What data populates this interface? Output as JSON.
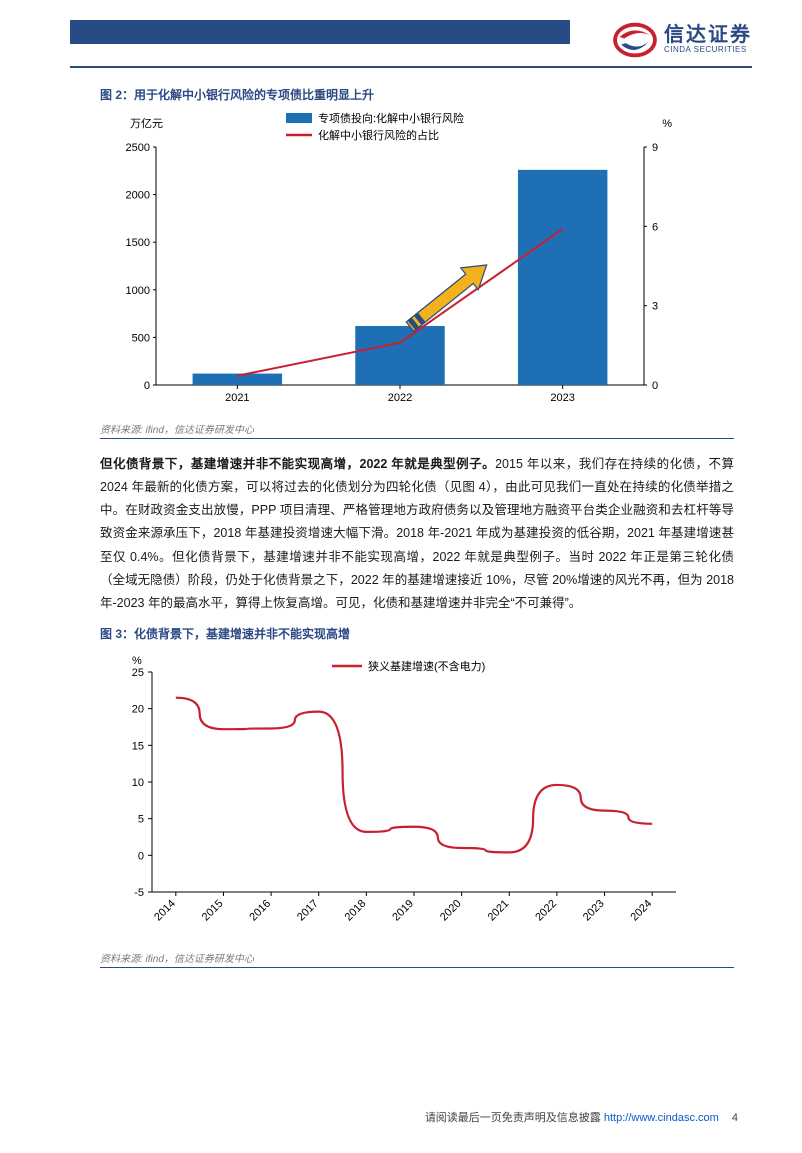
{
  "brand": {
    "name_cn": "信达证券",
    "name_en": "CINDA SECURITIES",
    "bar_color": "#294b83",
    "logo_red": "#c8202f",
    "logo_blue": "#2b4a85"
  },
  "figure2": {
    "title": "图 2：用于化解中小银行风险的专项债比重明显上升",
    "y_left_label": "万亿元",
    "y_right_label": "%",
    "legend_bar": "专项债投向:化解中小银行风险",
    "legend_line": "化解中小银行风险的占比",
    "type": "bar+line",
    "categories": [
      "2021",
      "2022",
      "2023"
    ],
    "bar_values": [
      120,
      620,
      2260
    ],
    "line_values": [
      0.35,
      1.6,
      5.9
    ],
    "bar_color": "#1f6fb5",
    "line_color": "#c8202f",
    "arrow_fill": "#f3b21b",
    "arrow_stroke": "#294b83",
    "y_left": {
      "min": 0,
      "max": 2500,
      "step": 500
    },
    "y_right": {
      "min": 0,
      "max": 9,
      "step": 3
    },
    "bg": "#ffffff",
    "axis_color": "#000000",
    "label_fontsize": 11,
    "source": "资料来源: ifind，信达证券研发中心"
  },
  "paragraph": {
    "lead": "但化债背景下，基建增速并非不能实现高增，2022 年就是典型例子。",
    "rest": "2015 年以来，我们存在持续的化债，不算 2024 年最新的化债方案，可以将过去的化债划分为四轮化债（见图 4），由此可见我们一直处在持续的化债举措之中。在财政资金支出放慢，PPP 项目清理、严格管理地方政府债务以及管理地方融资平台类企业融资和去杠杆等导致资金来源承压下，2018 年基建投资增速大幅下滑。2018 年-2021 年成为基建投资的低谷期，2021 年基建增速甚至仅 0.4%。但化债背景下，基建增速并非不能实现高增，2022 年就是典型例子。当时 2022 年正是第三轮化债（全域无隐债）阶段，仍处于化债背景之下，2022 年的基建增速接近 10%，尽管 20%增速的风光不再，但为 2018 年-2023 年的最高水平，算得上恢复高增。可见，化债和基建增速并非完全“不可兼得”。"
  },
  "figure3": {
    "title": "图 3：化债背景下，基建增速并非不能实现高增",
    "y_label": "%",
    "legend_line": "狭义基建增速(不含电力)",
    "type": "line",
    "categories": [
      "2014",
      "2015",
      "2016",
      "2017",
      "2018",
      "2019",
      "2020",
      "2021",
      "2022",
      "2023",
      "2024"
    ],
    "values": [
      21.5,
      17.2,
      17.3,
      19.6,
      3.2,
      3.9,
      1.0,
      0.4,
      9.6,
      6.1,
      4.3
    ],
    "line_color": "#c8202f",
    "axis_color": "#000000",
    "y": {
      "min": -5,
      "max": 25,
      "step": 5
    },
    "bg": "#ffffff",
    "label_fontsize": 11,
    "source": "资料来源: ifind，信达证券研发中心"
  },
  "footer": {
    "disclaimer": "请阅读最后一页免责声明及信息披露",
    "url": "http://www.cindasc.com",
    "page": "4"
  }
}
